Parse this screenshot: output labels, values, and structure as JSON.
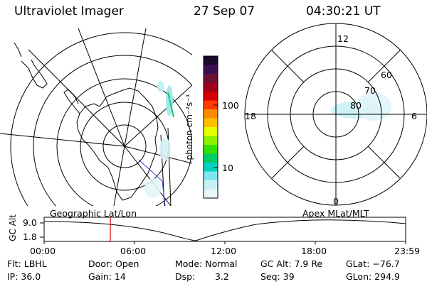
{
  "header": {
    "instrument": "Ultraviolet Imager",
    "date": "27 Sep 07",
    "time": "04:30:21 UT"
  },
  "colorbar": {
    "unit_label": "photon cm⁻²s⁻¹",
    "ticks": [
      "100",
      "10"
    ],
    "colors": [
      "#1a0a2e",
      "#3b0f4f",
      "#6b1035",
      "#a00020",
      "#d40000",
      "#ff3b00",
      "#ff8c00",
      "#ffbf00",
      "#e6ff00",
      "#8cf000",
      "#34e000",
      "#00cc66",
      "#00d4c0",
      "#7fe6ee",
      "#c7f0f4",
      "#e8f6f8"
    ]
  },
  "polar_plot": {
    "labels_mlt": {
      "top": "12",
      "left": "18",
      "right": "6",
      "bottom": "0"
    },
    "labels_mlat": [
      "60",
      "70",
      "80"
    ]
  },
  "timeline": {
    "left_label": "Geographic Lat/Lon",
    "right_label": "Apex MLat/MLT",
    "axis_label": "GC Alt",
    "y_ticks": [
      "9.0",
      "1.8"
    ],
    "x_ticks": [
      "00:00",
      "06:00",
      "12:00",
      "18:00",
      "23:59"
    ],
    "marker_color": "#e00000"
  },
  "info": {
    "flt": "Flt: LBHL",
    "ip": "IP: 36.0",
    "door": "Door: Open",
    "gain": "Gain: 14",
    "mode": "Mode: Normal",
    "dsp_label": "Dsp:",
    "dsp_value": "3.2",
    "gc_alt": "GC Alt: 7.9 Re",
    "seq": "Seq: 39",
    "glat": "GLat: −76.7",
    "glon": "GLon: 294.9"
  }
}
